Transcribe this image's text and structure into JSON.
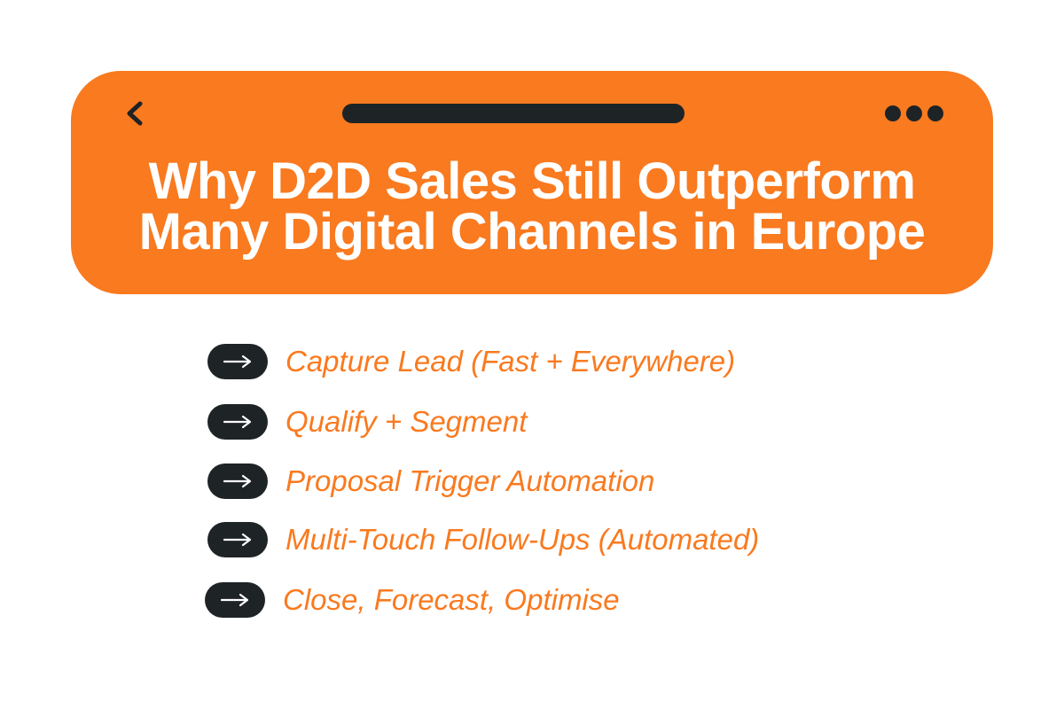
{
  "header": {
    "title": [
      "Why D2D Sales Still Outperform",
      "Many Digital Channels in Europe"
    ]
  },
  "steps": [
    "Capture Lead (Fast + Everywhere)",
    "Qualify + Segment",
    "Proposal Trigger Automation",
    "Multi-Touch Follow-Ups (Automated)",
    "Close, Forecast, Optimise"
  ]
}
